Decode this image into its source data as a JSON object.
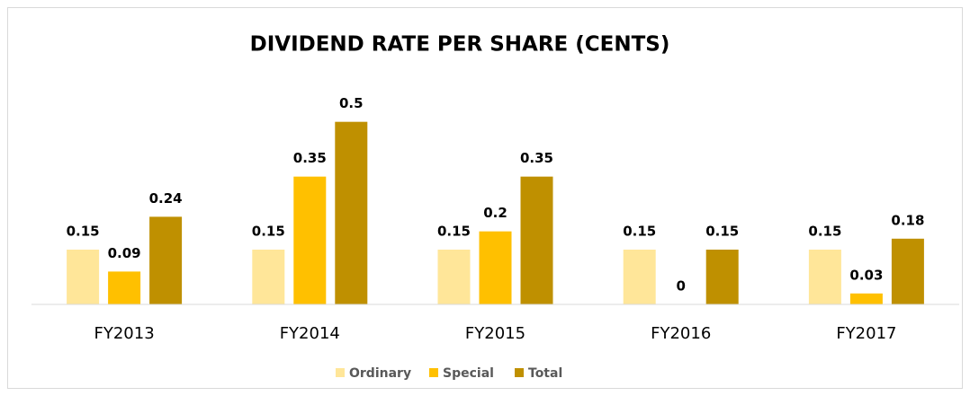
{
  "chart_data": {
    "type": "bar",
    "title": "DIVIDEND RATE PER SHARE (CENTS)",
    "categories": [
      "FY2013",
      "FY2014",
      "FY2015",
      "FY2016",
      "FY2017"
    ],
    "series": [
      {
        "name": "Ordinary",
        "color": "#FFE699",
        "values": [
          0.15,
          0.15,
          0.15,
          0.15,
          0.15
        ]
      },
      {
        "name": "Special",
        "color": "#FFC000",
        "values": [
          0.09,
          0.35,
          0.2,
          0,
          0.03
        ]
      },
      {
        "name": "Total",
        "color": "#BF9000",
        "values": [
          0.24,
          0.5,
          0.35,
          0.15,
          0.18
        ]
      }
    ],
    "ylim": [
      0,
      0.6
    ],
    "legend": "bottom"
  }
}
